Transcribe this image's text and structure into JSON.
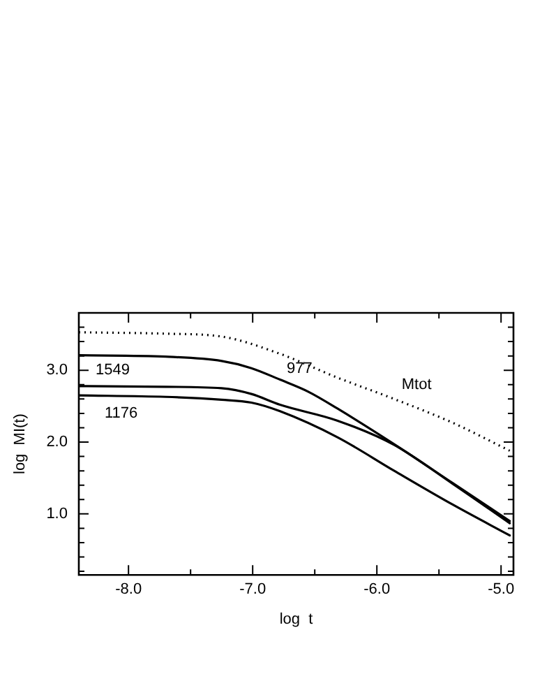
{
  "chart_data": {
    "type": "line",
    "xlabel": "log  t",
    "ylabel": "log  MI(t)",
    "xlim": [
      -8.4,
      -4.9
    ],
    "ylim": [
      0.15,
      3.8
    ],
    "xticks": [
      {
        "value": -8.0,
        "label": "-8.0"
      },
      {
        "value": -7.5,
        "label": null
      },
      {
        "value": -7.0,
        "label": "-7.0"
      },
      {
        "value": -6.5,
        "label": null
      },
      {
        "value": -6.0,
        "label": "-6.0"
      },
      {
        "value": -5.5,
        "label": null
      },
      {
        "value": -5.0,
        "label": "-5.0"
      }
    ],
    "yticks": [
      {
        "value": 0.2,
        "label": null
      },
      {
        "value": 0.4,
        "label": null
      },
      {
        "value": 0.6,
        "label": null
      },
      {
        "value": 0.8,
        "label": null
      },
      {
        "value": 1.0,
        "label": "1.0"
      },
      {
        "value": 1.2,
        "label": null
      },
      {
        "value": 1.4,
        "label": null
      },
      {
        "value": 1.6,
        "label": null
      },
      {
        "value": 1.8,
        "label": null
      },
      {
        "value": 2.0,
        "label": "2.0"
      },
      {
        "value": 2.2,
        "label": null
      },
      {
        "value": 2.4,
        "label": null
      },
      {
        "value": 2.6,
        "label": null
      },
      {
        "value": 2.8,
        "label": null
      },
      {
        "value": 3.0,
        "label": "3.0"
      },
      {
        "value": 3.2,
        "label": null
      },
      {
        "value": 3.4,
        "label": null
      },
      {
        "value": 3.6,
        "label": null
      }
    ],
    "grid": false,
    "legend": false,
    "marker": "none",
    "series": [
      {
        "name": "Mtot",
        "color": "#000000",
        "line_style": "dotted",
        "x": [
          -8.4,
          -7.7,
          -7.25,
          -6.78,
          -6.32,
          -5.86,
          -5.39,
          -4.93
        ],
        "values": [
          3.53,
          3.51,
          3.47,
          3.23,
          2.9,
          2.6,
          2.27,
          1.88
        ]
      },
      {
        "name": "977",
        "color": "#000000",
        "line_style": "solid",
        "x": [
          -8.4,
          -7.7,
          -7.25,
          -7.01,
          -6.78,
          -6.55,
          -6.32,
          -5.86,
          -5.39,
          -4.93
        ],
        "values": [
          3.21,
          3.19,
          3.13,
          3.03,
          2.87,
          2.7,
          2.47,
          1.97,
          1.43,
          0.9
        ]
      },
      {
        "name": "1549",
        "color": "#000000",
        "line_style": "solid",
        "x": [
          -8.4,
          -7.7,
          -7.25,
          -7.01,
          -6.78,
          -6.32,
          -5.86,
          -5.39,
          -4.93
        ],
        "values": [
          2.78,
          2.77,
          2.75,
          2.67,
          2.52,
          2.3,
          1.96,
          1.42,
          0.87
        ]
      },
      {
        "name": "1176",
        "color": "#000000",
        "line_style": "solid",
        "x": [
          -8.4,
          -7.7,
          -7.25,
          -7.01,
          -6.78,
          -6.32,
          -5.86,
          -5.39,
          -4.93
        ],
        "values": [
          2.65,
          2.63,
          2.59,
          2.55,
          2.43,
          2.07,
          1.6,
          1.13,
          0.7
        ]
      }
    ]
  }
}
